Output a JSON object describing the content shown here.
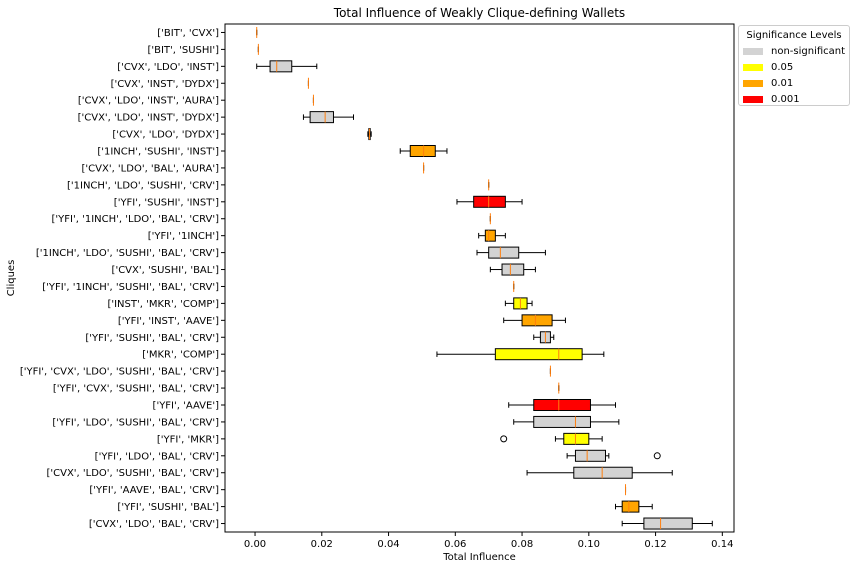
{
  "chart_data": {
    "type": "boxplot-horizontal",
    "title": "Total Influence of Weakly Clique-defining Wallets",
    "xlabel": "Total Influence",
    "ylabel": "Cliques",
    "xlim": [
      -0.009,
      0.1435
    ],
    "xticks": [
      "0.00",
      "0.02",
      "0.04",
      "0.06",
      "0.08",
      "0.10",
      "0.12",
      "0.14"
    ],
    "xtick_values": [
      0.0,
      0.02,
      0.04,
      0.06,
      0.08,
      0.1,
      0.12,
      0.14
    ],
    "grid": false,
    "legend": {
      "title": "Significance Levels",
      "placement": "outside-top-right",
      "items": [
        {
          "label": "non-significant",
          "color": "#d3d3d3"
        },
        {
          "label": "0.05",
          "color": "#ffff00"
        },
        {
          "label": "0.01",
          "color": "#ffa500"
        },
        {
          "label": "0.001",
          "color": "#ff0000"
        }
      ]
    },
    "median_color": "#ff7f0e",
    "cliques": [
      {
        "label": "['BIT', 'CVX']",
        "min": 0.0005,
        "q1": 0.0005,
        "median": 0.0005,
        "q3": 0.0005,
        "max": 0.0005,
        "significance": "non-significant",
        "outliers": []
      },
      {
        "label": "['BIT', 'SUSHI']",
        "min": 0.001,
        "q1": 0.001,
        "median": 0.001,
        "q3": 0.001,
        "max": 0.001,
        "significance": "non-significant",
        "outliers": []
      },
      {
        "label": "['CVX', 'LDO', 'INST']",
        "min": 0.0005,
        "q1": 0.0045,
        "median": 0.0065,
        "q3": 0.011,
        "max": 0.0185,
        "significance": "non-significant",
        "outliers": []
      },
      {
        "label": "['CVX', 'INST', 'DYDX']",
        "min": 0.016,
        "q1": 0.016,
        "median": 0.016,
        "q3": 0.016,
        "max": 0.016,
        "significance": "non-significant",
        "outliers": []
      },
      {
        "label": "['CVX', 'LDO', 'INST', 'AURA']",
        "min": 0.0175,
        "q1": 0.0175,
        "median": 0.0175,
        "q3": 0.0175,
        "max": 0.0175,
        "significance": "non-significant",
        "outliers": []
      },
      {
        "label": "['CVX', 'LDO', 'INST', 'DYDX']",
        "min": 0.0145,
        "q1": 0.0165,
        "median": 0.021,
        "q3": 0.0235,
        "max": 0.0295,
        "significance": "non-significant",
        "outliers": []
      },
      {
        "label": "['CVX', 'LDO', 'DYDX']",
        "min": 0.0338,
        "q1": 0.0341,
        "median": 0.0343,
        "q3": 0.0345,
        "max": 0.0348,
        "significance": "non-significant",
        "outliers": []
      },
      {
        "label": "['1INCH', 'SUSHI', 'INST']",
        "min": 0.0435,
        "q1": 0.0465,
        "median": 0.0505,
        "q3": 0.054,
        "max": 0.0575,
        "significance": "0.01",
        "outliers": []
      },
      {
        "label": "['CVX', 'LDO', 'BAL', 'AURA']",
        "min": 0.0505,
        "q1": 0.0505,
        "median": 0.0505,
        "q3": 0.0505,
        "max": 0.0505,
        "significance": "non-significant",
        "outliers": []
      },
      {
        "label": "['1INCH', 'LDO', 'SUSHI', 'CRV']",
        "min": 0.07,
        "q1": 0.07,
        "median": 0.07,
        "q3": 0.07,
        "max": 0.07,
        "significance": "non-significant",
        "outliers": []
      },
      {
        "label": "['YFI', 'SUSHI', 'INST']",
        "min": 0.0605,
        "q1": 0.0655,
        "median": 0.07,
        "q3": 0.075,
        "max": 0.08,
        "significance": "0.001",
        "outliers": []
      },
      {
        "label": "['YFI', '1INCH', 'LDO', 'BAL', 'CRV']",
        "min": 0.0705,
        "q1": 0.0705,
        "median": 0.0705,
        "q3": 0.0705,
        "max": 0.0705,
        "significance": "non-significant",
        "outliers": []
      },
      {
        "label": "['YFI', '1INCH']",
        "min": 0.067,
        "q1": 0.069,
        "median": 0.07,
        "q3": 0.072,
        "max": 0.075,
        "significance": "0.01",
        "outliers": []
      },
      {
        "label": "['1INCH', 'LDO', 'SUSHI', 'BAL', 'CRV']",
        "min": 0.0665,
        "q1": 0.07,
        "median": 0.0735,
        "q3": 0.079,
        "max": 0.087,
        "significance": "non-significant",
        "outliers": []
      },
      {
        "label": "['CVX', 'SUSHI', 'BAL']",
        "min": 0.0705,
        "q1": 0.074,
        "median": 0.0765,
        "q3": 0.0805,
        "max": 0.084,
        "significance": "non-significant",
        "outliers": []
      },
      {
        "label": "['YFI', '1INCH', 'SUSHI', 'BAL', 'CRV']",
        "min": 0.0775,
        "q1": 0.0775,
        "median": 0.0775,
        "q3": 0.0775,
        "max": 0.0775,
        "significance": "non-significant",
        "outliers": []
      },
      {
        "label": "['INST', 'MKR', 'COMP']",
        "min": 0.075,
        "q1": 0.0775,
        "median": 0.0795,
        "q3": 0.0815,
        "max": 0.083,
        "significance": "0.05",
        "outliers": []
      },
      {
        "label": "['YFI', 'INST', 'AAVE']",
        "min": 0.0745,
        "q1": 0.08,
        "median": 0.084,
        "q3": 0.089,
        "max": 0.093,
        "significance": "0.01",
        "outliers": []
      },
      {
        "label": "['YFI', 'SUSHI', 'BAL', 'CRV']",
        "min": 0.0835,
        "q1": 0.0855,
        "median": 0.087,
        "q3": 0.0885,
        "max": 0.0895,
        "significance": "non-significant",
        "outliers": []
      },
      {
        "label": "['MKR', 'COMP']",
        "min": 0.0545,
        "q1": 0.072,
        "median": 0.091,
        "q3": 0.098,
        "max": 0.1045,
        "significance": "0.05",
        "outliers": []
      },
      {
        "label": "['YFI', 'CVX', 'LDO', 'SUSHI', 'BAL', 'CRV']",
        "min": 0.0885,
        "q1": 0.0885,
        "median": 0.0885,
        "q3": 0.0885,
        "max": 0.0885,
        "significance": "non-significant",
        "outliers": []
      },
      {
        "label": "['YFI', 'CVX', 'SUSHI', 'BAL', 'CRV']",
        "min": 0.091,
        "q1": 0.091,
        "median": 0.091,
        "q3": 0.091,
        "max": 0.091,
        "significance": "non-significant",
        "outliers": []
      },
      {
        "label": "['YFI', 'AAVE']",
        "min": 0.076,
        "q1": 0.0835,
        "median": 0.091,
        "q3": 0.1005,
        "max": 0.108,
        "significance": "0.001",
        "outliers": []
      },
      {
        "label": "['YFI', 'LDO', 'SUSHI', 'BAL', 'CRV']",
        "min": 0.0775,
        "q1": 0.0835,
        "median": 0.096,
        "q3": 0.1005,
        "max": 0.109,
        "significance": "non-significant",
        "outliers": []
      },
      {
        "label": "['YFI', 'MKR']",
        "min": 0.09,
        "q1": 0.0925,
        "median": 0.096,
        "q3": 0.1,
        "max": 0.104,
        "significance": "0.05",
        "outliers": [
          0.0745
        ]
      },
      {
        "label": "['YFI', 'LDO', 'BAL', 'CRV']",
        "min": 0.0935,
        "q1": 0.096,
        "median": 0.0995,
        "q3": 0.105,
        "max": 0.106,
        "significance": "non-significant",
        "outliers": [
          0.1205
        ]
      },
      {
        "label": "['CVX', 'LDO', 'SUSHI', 'BAL', 'CRV']",
        "min": 0.0815,
        "q1": 0.0955,
        "median": 0.104,
        "q3": 0.113,
        "max": 0.125,
        "significance": "non-significant",
        "outliers": []
      },
      {
        "label": "['YFI', 'AAVE', 'BAL', 'CRV']",
        "min": 0.111,
        "q1": 0.111,
        "median": 0.111,
        "q3": 0.111,
        "max": 0.111,
        "significance": "non-significant",
        "outliers": []
      },
      {
        "label": "['YFI', 'SUSHI', 'BAL']",
        "min": 0.108,
        "q1": 0.11,
        "median": 0.112,
        "q3": 0.115,
        "max": 0.119,
        "significance": "0.01",
        "outliers": []
      },
      {
        "label": "['CVX', 'LDO', 'BAL', 'CRV']",
        "min": 0.11,
        "q1": 0.1165,
        "median": 0.1215,
        "q3": 0.131,
        "max": 0.137,
        "significance": "non-significant",
        "outliers": []
      }
    ]
  }
}
